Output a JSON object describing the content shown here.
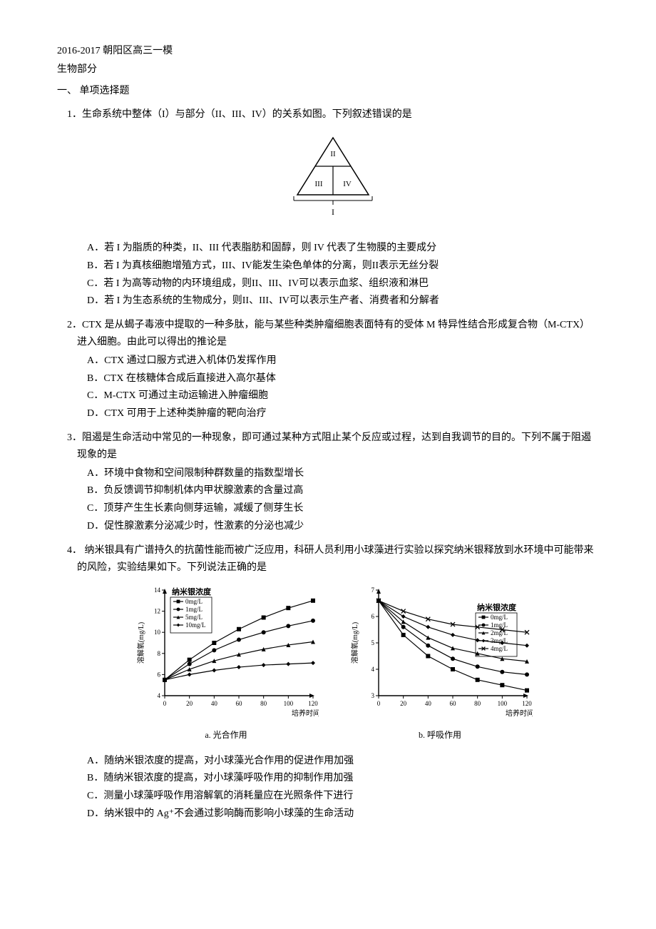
{
  "header": {
    "line1": "2016-2017 朝阳区高三一模",
    "line2": "生物部分",
    "section": "一、   单项选择题"
  },
  "q1": {
    "num": "1．",
    "stem": "生命系统中整体（I）与部分（II、III、IV）的关系如图。下列叙述错误的是",
    "triangle": {
      "labels": [
        "II",
        "III",
        "IV"
      ],
      "bottom": "I",
      "stroke": "#000000",
      "bg": "#ffffff"
    },
    "opts": {
      "A": "A．若 I 为脂质的种类，II、III 代表脂肪和固醇，则 IV 代表了生物膜的主要成分",
      "B": "B．若 I 为真核细胞增殖方式，III、IV能发生染色单体的分离，则II表示无丝分裂",
      "C": "C．若 I 为高等动物的内环境组成，则II、III、IV可以表示血浆、组织液和淋巴",
      "D": "D．若 I 为生态系统的生物成分，则II、III、IV可以表示生产者、消费者和分解者"
    }
  },
  "q2": {
    "num": "2．",
    "stem": "CTX 是从蝎子毒液中提取的一种多肽，能与某些种类肿瘤细胞表面特有的受体 M 特异性结合形成复合物（M-CTX）进入细胞。由此可以得出的推论是",
    "opts": {
      "A": "A．CTX 通过口服方式进入机体仍发挥作用",
      "B": "B．CTX 在核糖体合成后直接进入高尔基体",
      "C": "C．M-CTX 可通过主动运输进入肿瘤细胞",
      "D": "D．CTX 可用于上述种类肿瘤的靶向治疗"
    }
  },
  "q3": {
    "num": "3．",
    "stem": "阻遏是生命活动中常见的一种现象，即可通过某种方式阻止某个反应或过程，达到自我调节的目的。下列不属于阻遏现象的是",
    "opts": {
      "A": "A．环境中食物和空间限制种群数量的指数型增长",
      "B": "B．负反馈调节抑制机体内甲状腺激素的含量过高",
      "C": "C．顶芽产生生长素向侧芽运输，减缓了侧芽生长",
      "D": "D．促性腺激素分泌减少时，性激素的分泌也减少"
    }
  },
  "q4": {
    "num": "4．",
    "stem": "  纳米银具有广谱持久的抗菌性能而被广泛应用，科研人员利用小球藻进行实验以探究纳米银释放到水环境中可能带来的风险，实验结果如下。下列说法正确的是",
    "chart_a": {
      "type": "line",
      "title_inside": "纳米银浓度",
      "caption": "a. 光合作用",
      "x_label": "培养时间(min)",
      "y_label": "溶解氧(mg/L)",
      "xlim": [
        0,
        120
      ],
      "xtick_step": 20,
      "ylim": [
        4,
        14
      ],
      "ytick_step": 2,
      "series": [
        {
          "name": "0mg/L",
          "color": "#000000",
          "marker": "square",
          "values": [
            [
              0,
              5.5
            ],
            [
              20,
              7.4
            ],
            [
              40,
              9.0
            ],
            [
              60,
              10.3
            ],
            [
              80,
              11.4
            ],
            [
              100,
              12.3
            ],
            [
              120,
              13.0
            ]
          ]
        },
        {
          "name": "1mg/L",
          "color": "#000000",
          "marker": "circle",
          "values": [
            [
              0,
              5.5
            ],
            [
              20,
              7.0
            ],
            [
              40,
              8.3
            ],
            [
              60,
              9.3
            ],
            [
              80,
              10.0
            ],
            [
              100,
              10.6
            ],
            [
              120,
              11.1
            ]
          ]
        },
        {
          "name": "5mg/L",
          "color": "#000000",
          "marker": "triangle",
          "values": [
            [
              0,
              5.5
            ],
            [
              20,
              6.5
            ],
            [
              40,
              7.3
            ],
            [
              60,
              7.9
            ],
            [
              80,
              8.4
            ],
            [
              100,
              8.8
            ],
            [
              120,
              9.1
            ]
          ]
        },
        {
          "name": "10mg/L",
          "color": "#000000",
          "marker": "diamond",
          "values": [
            [
              0,
              5.5
            ],
            [
              20,
              6.0
            ],
            [
              40,
              6.4
            ],
            [
              60,
              6.7
            ],
            [
              80,
              6.9
            ],
            [
              100,
              7.0
            ],
            [
              120,
              7.1
            ]
          ]
        }
      ],
      "axis_color": "#000000",
      "bg": "#ffffff",
      "font_size_label": 10,
      "font_size_tick": 9,
      "line_width": 1.2,
      "marker_size": 3
    },
    "chart_b": {
      "type": "line",
      "title_inside": "纳米银浓度",
      "caption": "b. 呼吸作用",
      "x_label": "培养时间(min)",
      "y_label": "溶解氧(mg/L)",
      "xlim": [
        0,
        120
      ],
      "xtick_step": 20,
      "ylim": [
        3,
        7
      ],
      "ytick_step": 1,
      "series": [
        {
          "name": "0mg/L",
          "color": "#000000",
          "marker": "square",
          "values": [
            [
              0,
              6.6
            ],
            [
              20,
              5.3
            ],
            [
              40,
              4.5
            ],
            [
              60,
              4.0
            ],
            [
              80,
              3.6
            ],
            [
              100,
              3.4
            ],
            [
              120,
              3.2
            ]
          ]
        },
        {
          "name": "1mg/L",
          "color": "#000000",
          "marker": "circle",
          "values": [
            [
              0,
              6.6
            ],
            [
              20,
              5.6
            ],
            [
              40,
              4.9
            ],
            [
              60,
              4.4
            ],
            [
              80,
              4.1
            ],
            [
              100,
              3.9
            ],
            [
              120,
              3.8
            ]
          ]
        },
        {
          "name": "2mg/L",
          "color": "#000000",
          "marker": "triangle",
          "values": [
            [
              0,
              6.6
            ],
            [
              20,
              5.8
            ],
            [
              40,
              5.2
            ],
            [
              60,
              4.8
            ],
            [
              80,
              4.6
            ],
            [
              100,
              4.4
            ],
            [
              120,
              4.3
            ]
          ]
        },
        {
          "name": "3mg/L",
          "color": "#000000",
          "marker": "diamond",
          "values": [
            [
              0,
              6.6
            ],
            [
              20,
              6.0
            ],
            [
              40,
              5.6
            ],
            [
              60,
              5.3
            ],
            [
              80,
              5.1
            ],
            [
              100,
              5.0
            ],
            [
              120,
              4.9
            ]
          ]
        },
        {
          "name": "4mg/L",
          "color": "#000000",
          "marker": "x",
          "values": [
            [
              0,
              6.6
            ],
            [
              20,
              6.2
            ],
            [
              40,
              5.9
            ],
            [
              60,
              5.7
            ],
            [
              80,
              5.6
            ],
            [
              100,
              5.5
            ],
            [
              120,
              5.4
            ]
          ]
        }
      ],
      "axis_color": "#000000",
      "bg": "#ffffff",
      "font_size_label": 10,
      "font_size_tick": 9,
      "line_width": 1.2,
      "marker_size": 3
    },
    "opts": {
      "A": "A．随纳米银浓度的提高，对小球藻光合作用的促进作用加强",
      "B": "B．随纳米银浓度的提高，对小球藻呼吸作用的抑制作用加强",
      "C": "C．测量小球藻呼吸作用溶解氧的消耗量应在光照条件下进行",
      "D": "D．纳米银中的 Ag⁺不会通过影响酶而影响小球藻的生命活动"
    }
  }
}
